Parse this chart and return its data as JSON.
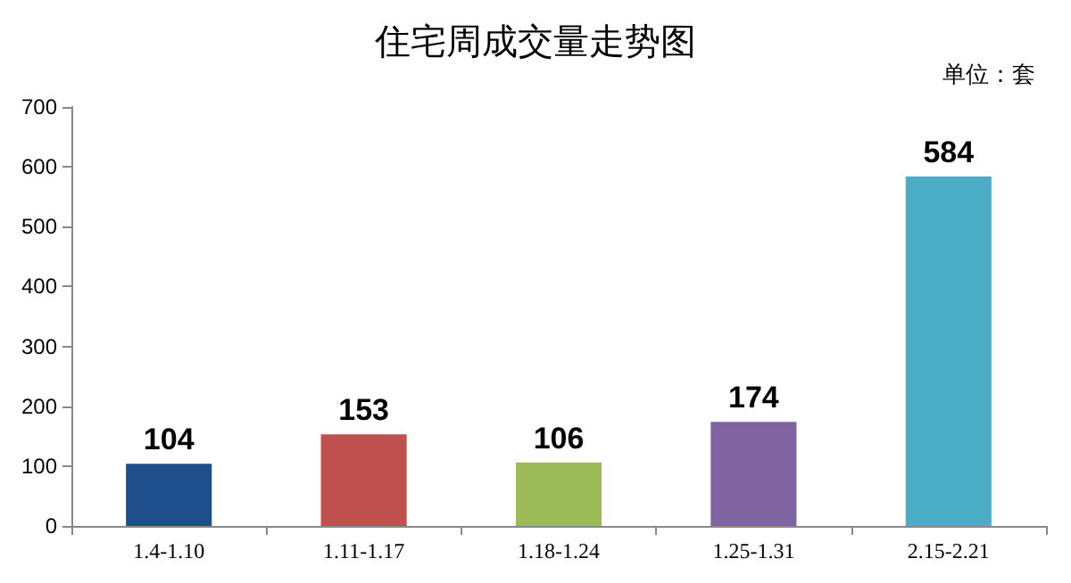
{
  "chart_data": {
    "type": "bar",
    "title": "住宅周成交量走势图",
    "annotations": [
      "单位：套"
    ],
    "categories": [
      "1.4-1.10",
      "1.11-1.17",
      "1.18-1.24",
      "1.25-1.31",
      "2.15-2.21"
    ],
    "values": [
      104,
      153,
      106,
      174,
      584
    ],
    "colors": [
      "#1f4e8c",
      "#c0504d",
      "#9bbb59",
      "#8064a2",
      "#4bacc6"
    ],
    "ylim": [
      0,
      700
    ],
    "yticks": [
      0,
      100,
      200,
      300,
      400,
      500,
      600,
      700
    ],
    "data_labels": true
  }
}
